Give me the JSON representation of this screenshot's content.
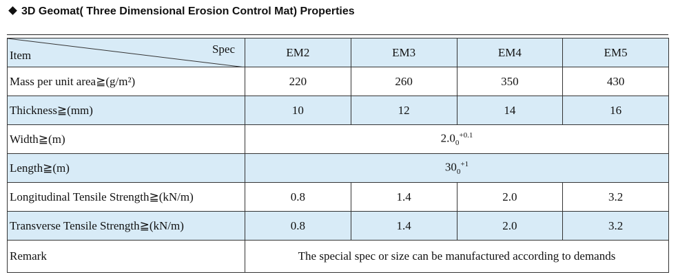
{
  "title": "3D Geomat( Three Dimensional Erosion Control Mat) Properties",
  "table": {
    "header": {
      "item": "Item",
      "spec": "Spec",
      "columns": [
        "EM2",
        "EM3",
        "EM4",
        "EM5"
      ]
    },
    "rows": [
      {
        "label": "Mass per unit area≧(g/m²)",
        "values": [
          220,
          260,
          350,
          430
        ]
      },
      {
        "label": "Thickness≧(mm)",
        "values": [
          10,
          12,
          14,
          16
        ]
      },
      {
        "label": "Width≧(m)",
        "value": {
          "main": "2.0",
          "sub": "0",
          "sup": "+0.1"
        }
      },
      {
        "label": "Length≧(m)",
        "value": {
          "main": "30",
          "sub": "0",
          "sup": "+1"
        }
      },
      {
        "label": "Longitudinal Tensile Strength≧(kN/m)",
        "values": [
          0.8,
          1.4,
          "2.0",
          3.2
        ]
      },
      {
        "label": "Transverse Tensile Strength≧(kN/m)",
        "values": [
          0.8,
          1.4,
          "2.0",
          3.2
        ]
      },
      {
        "label": "Remark",
        "text": "The special spec or size can be manufactured according to demands"
      }
    ]
  }
}
